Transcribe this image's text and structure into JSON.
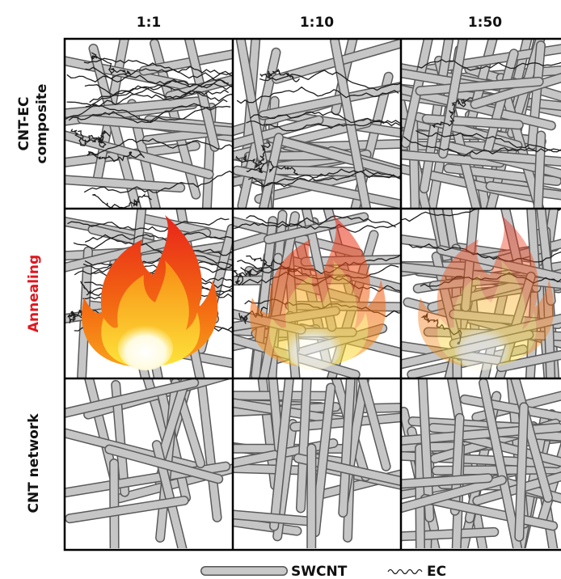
{
  "columns": [
    "1:1",
    "1:10",
    "1:50"
  ],
  "rows": [
    {
      "lines": [
        "CNT-EC",
        "composite"
      ]
    },
    {
      "lines": [
        "Annealing"
      ]
    },
    {
      "lines": [
        "CNT network"
      ]
    }
  ],
  "legend": {
    "tube": "SWCNT",
    "wave": "EC"
  }
}
